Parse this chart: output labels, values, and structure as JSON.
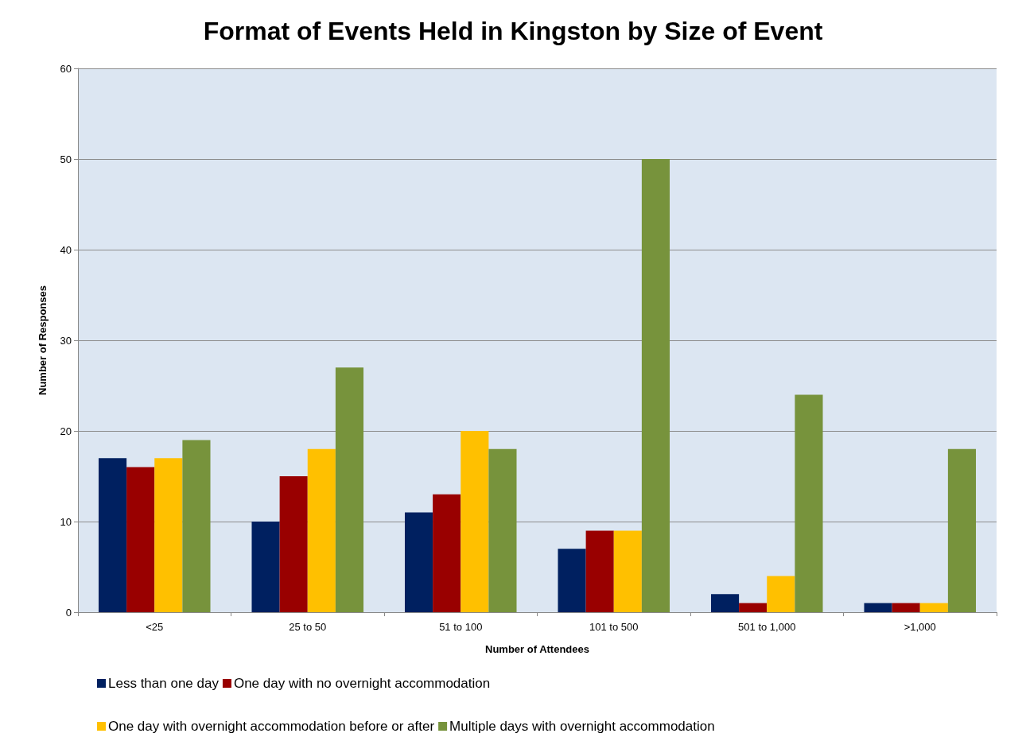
{
  "chart_data": {
    "type": "bar",
    "title": "Format of Events Held in Kingston by Size of Event",
    "xlabel": "Number of Attendees",
    "ylabel": "Number of Responses",
    "categories": [
      "<25",
      "25 to 50",
      "51 to 100",
      "101 to 500",
      "501 to 1,000",
      ">1,000"
    ],
    "series": [
      {
        "name": "Less than one day",
        "color": "#002060",
        "values": [
          17,
          10,
          11,
          7,
          2,
          1
        ]
      },
      {
        "name": "One day with no overnight accommodation",
        "color": "#990000",
        "values": [
          16,
          15,
          13,
          9,
          1,
          1
        ]
      },
      {
        "name": "One day with overnight accommodation before or after",
        "color": "#ffc000",
        "values": [
          17,
          18,
          20,
          9,
          4,
          1
        ]
      },
      {
        "name": "Multiple days with overnight accommodation",
        "color": "#77933c",
        "values": [
          19,
          27,
          18,
          50,
          24,
          18
        ]
      }
    ],
    "ylim": [
      0,
      60
    ],
    "yticks": [
      0,
      10,
      20,
      30,
      40,
      50,
      60
    ],
    "grid": "y",
    "legend": "bottom"
  }
}
